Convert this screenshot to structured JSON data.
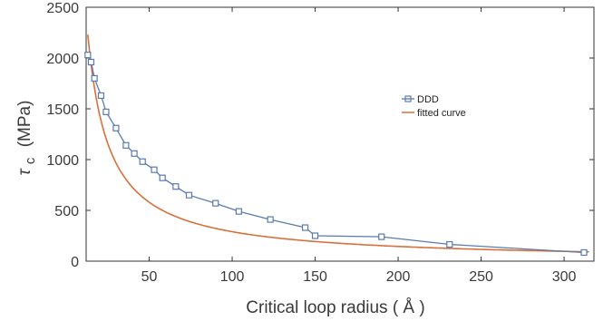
{
  "chart_data": {
    "type": "line",
    "xlabel": "Critical loop radius ( Å )",
    "ylabel": "τ_c (MPa)",
    "ylabel_symbol": "τ",
    "ylabel_subscript": "c",
    "ylabel_unit": "(MPa)",
    "xlim": [
      12,
      318
    ],
    "ylim": [
      0,
      2500
    ],
    "x_ticks": [
      50,
      100,
      150,
      200,
      250,
      300
    ],
    "x_tick_labels": [
      "50",
      "100",
      "150",
      "200",
      "250",
      "300"
    ],
    "y_ticks": [
      0,
      500,
      1000,
      1500,
      2000,
      2500
    ],
    "y_tick_labels": [
      "0",
      "500",
      "1000",
      "1500",
      "2000",
      "2500"
    ],
    "grid": false,
    "legend_position": "center-right",
    "series": [
      {
        "name": "DDD",
        "color": "#5a7bb0",
        "marker": "square",
        "x": [
          13,
          15,
          17,
          21,
          24,
          30,
          36,
          41,
          46,
          53,
          58,
          66,
          74,
          90,
          104,
          123,
          144,
          150,
          190,
          231,
          312
        ],
        "y": [
          2030,
          1960,
          1800,
          1630,
          1470,
          1310,
          1140,
          1060,
          980,
          900,
          820,
          735,
          650,
          570,
          490,
          410,
          330,
          250,
          240,
          165,
          85
        ]
      },
      {
        "name": "fitted curve",
        "color": "#d8703a",
        "marker": "none",
        "formula": "y = 29000 / x",
        "x_range": [
          13,
          315
        ]
      }
    ]
  }
}
